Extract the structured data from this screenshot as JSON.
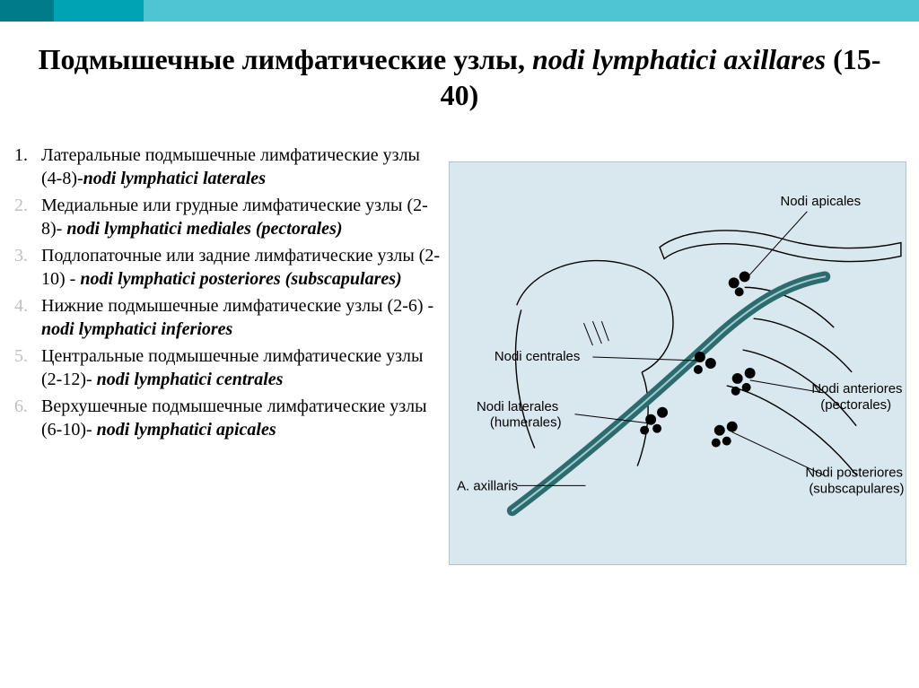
{
  "colors": {
    "topbar_dark": "#007b8a",
    "topbar_mid": "#00a3b4",
    "topbar_light": "#4fc5d4",
    "num_dark": "#000000",
    "num_light": "#bfbfbf",
    "fig_bg": "#d9e7ee",
    "fig_border": "#b0c4ce",
    "vessel": "#2d6b6f",
    "outline": "#000000"
  },
  "title": {
    "plain": "Подмышечные лимфатические узлы, ",
    "latin": "nodi lymphatici axillares",
    "count": " (15-40)"
  },
  "items": [
    {
      "num": "1.",
      "num_tone": "dark",
      "plain": " Латеральные подмышечные лимфатические узлы (4-8)-",
      "latin": "nodi lymphatici laterales"
    },
    {
      "num": "2.",
      "num_tone": "light",
      "plain": "Медиальные или грудные лимфатические узлы (2-8)- ",
      "latin": "nodi lymphatici  mediales (pectorales)"
    },
    {
      "num": "3.",
      "num_tone": "light",
      "plain": "Подлопаточные или задние лимфатические узлы (2-10) - ",
      "latin": "nodi lymphatici posteriores (subscapulares)"
    },
    {
      "num": "4.",
      "num_tone": "light",
      "plain": "Нижние подмышечные лимфатические узлы (2-6) -",
      "latin": "nodi lymphatici inferiores"
    },
    {
      "num": "5.",
      "num_tone": "light",
      "plain": "Центральные подмышечные лимфатические узлы (2-12)- ",
      "latin": "nodi lymphatici centrales"
    },
    {
      "num": "6.",
      "num_tone": "light",
      "plain": " Верхушечные подмышечные лимфатические узлы (6-10)- ",
      "latin": "nodi lymphatici apicales"
    }
  ],
  "figure": {
    "labels": {
      "apicales": "Nodi apicales",
      "centrales": "Nodi centrales",
      "laterales_l1": "Nodi laterales",
      "laterales_l2": "(humerales)",
      "axillaris": "A. axillaris",
      "anteriores_l1": "Nodi anteriores",
      "anteriores_l2": "(pectorales)",
      "posteriores_l1": "Nodi posteriores",
      "posteriores_l2": "(subscapulares)"
    },
    "vessel_width": 12,
    "outline_width": 1.4,
    "node_radius": 5
  }
}
